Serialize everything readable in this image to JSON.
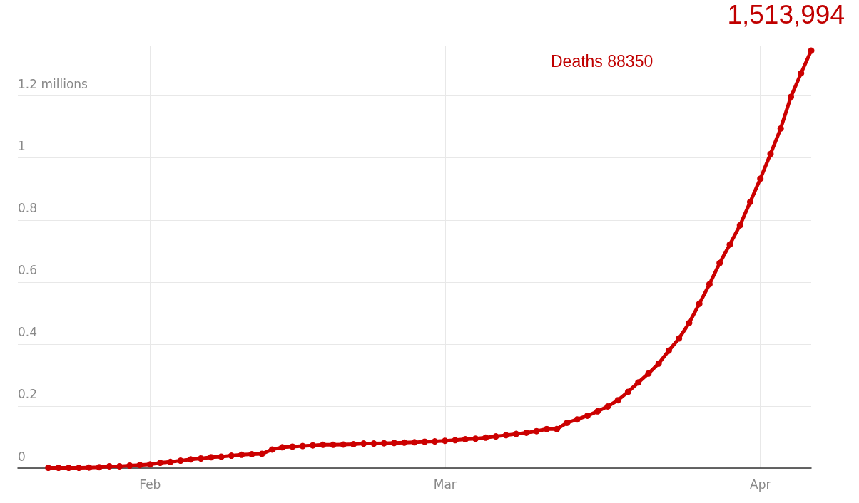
{
  "chart_data": {
    "type": "line",
    "x": [
      "--01-22",
      "--01-23",
      "--01-24",
      "--01-25",
      "--01-26",
      "--01-27",
      "--01-28",
      "--01-29",
      "--01-30",
      "--01-31",
      "--02-01",
      "--02-02",
      "--02-03",
      "--02-04",
      "--02-05",
      "--02-06",
      "--02-07",
      "--02-08",
      "--02-09",
      "--02-10",
      "--02-11",
      "--02-12",
      "--02-13",
      "--02-14",
      "--02-15",
      "--02-16",
      "--02-17",
      "--02-18",
      "--02-19",
      "--02-20",
      "--02-21",
      "--02-22",
      "--02-23",
      "--02-24",
      "--02-25",
      "--02-26",
      "--02-27",
      "--02-28",
      "--02-29",
      "--03-01",
      "--03-02",
      "--03-03",
      "--03-04",
      "--03-05",
      "--03-06",
      "--03-07",
      "--03-08",
      "--03-09",
      "--03-10",
      "--03-11",
      "--03-12",
      "--03-13",
      "--03-14",
      "--03-15",
      "--03-16",
      "--03-17",
      "--03-18",
      "--03-19",
      "--03-20",
      "--03-21",
      "--03-22",
      "--03-23",
      "--03-24",
      "--03-25",
      "--03-26",
      "--03-27",
      "--03-28",
      "--03-29",
      "--03-30",
      "--03-31",
      "--04-01",
      "--04-02",
      "--04-03",
      "--04-04",
      "--04-05",
      "--04-06"
    ],
    "series": [
      {
        "color": "#cc0000",
        "values": [
          0.001,
          0.001,
          0.001,
          0.001,
          0.002,
          0.003,
          0.006,
          0.006,
          0.008,
          0.01,
          0.012,
          0.017,
          0.02,
          0.024,
          0.028,
          0.031,
          0.035,
          0.037,
          0.04,
          0.043,
          0.045,
          0.046,
          0.06,
          0.067,
          0.069,
          0.071,
          0.073,
          0.075,
          0.075,
          0.076,
          0.077,
          0.079,
          0.079,
          0.08,
          0.081,
          0.082,
          0.083,
          0.085,
          0.086,
          0.088,
          0.09,
          0.093,
          0.095,
          0.098,
          0.102,
          0.106,
          0.11,
          0.114,
          0.119,
          0.126,
          0.126,
          0.146,
          0.157,
          0.169,
          0.183,
          0.199,
          0.219,
          0.246,
          0.276,
          0.305,
          0.337,
          0.379,
          0.418,
          0.468,
          0.53,
          0.593,
          0.661,
          0.721,
          0.783,
          0.858,
          0.933,
          1.013,
          1.095,
          1.197,
          1.273,
          1.346
        ]
      }
    ],
    "xlim": [
      "--01-19",
      "--04-06"
    ],
    "xticks": [
      {
        "value": "--02-01",
        "label": "Feb"
      },
      {
        "value": "--03-01",
        "label": "Mar"
      },
      {
        "value": "--04-01",
        "label": "Apr"
      }
    ],
    "ylim": [
      0,
      1.36
    ],
    "yticks": [
      0,
      0.2,
      0.4,
      0.6,
      0.8,
      1,
      {
        "value": 1.2,
        "label": "1.2 millions"
      }
    ],
    "grid": true,
    "marker": "circle",
    "line_style": "solid",
    "annotations": [
      "Deaths 88350",
      "1,513,994"
    ]
  }
}
